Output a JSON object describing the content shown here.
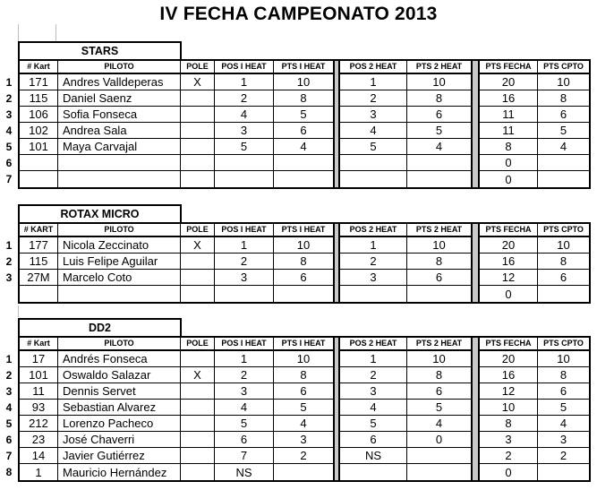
{
  "title": "IV FECHA CAMPEONATO 2013",
  "colors": {
    "background": "#ffffff",
    "border": "#000000",
    "separator_fill": "#c9c9c9",
    "gridline_stub": "#bdbdbd"
  },
  "tables": [
    {
      "name": "STARS",
      "headers": [
        "# Kart",
        "PILOTO",
        "POLE",
        "POS I HEAT",
        "PTS I HEAT",
        "POS 2 HEAT",
        "PTS 2 HEAT",
        "PTS FECHA",
        "PTS CPTO"
      ],
      "rows": [
        {
          "num": "1",
          "cells": [
            "171",
            "Andres Valldeperas",
            "X",
            "1",
            "10",
            "1",
            "10",
            "20",
            "10"
          ]
        },
        {
          "num": "2",
          "cells": [
            "115",
            "Daniel Saenz",
            "",
            "2",
            "8",
            "2",
            "8",
            "16",
            "8"
          ]
        },
        {
          "num": "3",
          "cells": [
            "106",
            "Sofia Fonseca",
            "",
            "4",
            "5",
            "3",
            "6",
            "11",
            "6"
          ]
        },
        {
          "num": "4",
          "cells": [
            "102",
            "Andrea Sala",
            "",
            "3",
            "6",
            "4",
            "5",
            "11",
            "5"
          ]
        },
        {
          "num": "5",
          "cells": [
            "101",
            "Maya Carvajal",
            "",
            "5",
            "4",
            "5",
            "4",
            "8",
            "4"
          ]
        },
        {
          "num": "6",
          "cells": [
            "",
            "",
            "",
            "",
            "",
            "",
            "",
            "0",
            ""
          ]
        },
        {
          "num": "7",
          "cells": [
            "",
            "",
            "",
            "",
            "",
            "",
            "",
            "0",
            ""
          ]
        }
      ]
    },
    {
      "name": "ROTAX MICRO",
      "headers": [
        "# KART",
        "PILOTO",
        "POLE",
        "POS I HEAT",
        "PTS I HEAT",
        "POS 2 HEAT",
        "PTS 2 HEAT",
        "PTS FECHA",
        "PTS CPTO"
      ],
      "rows": [
        {
          "num": "1",
          "cells": [
            "177",
            "Nicola Zeccinato",
            "X",
            "1",
            "10",
            "1",
            "10",
            "20",
            "10"
          ]
        },
        {
          "num": "2",
          "cells": [
            "115",
            "Luis Felipe Aguilar",
            "",
            "2",
            "8",
            "2",
            "8",
            "16",
            "8"
          ]
        },
        {
          "num": "3",
          "cells": [
            "27M",
            "Marcelo Coto",
            "",
            "3",
            "6",
            "3",
            "6",
            "12",
            "6"
          ]
        },
        {
          "num": "",
          "cells": [
            "",
            "",
            "",
            "",
            "",
            "",
            "",
            "0",
            ""
          ]
        }
      ]
    },
    {
      "name": "DD2",
      "headers": [
        "# Kart",
        "PILOTO",
        "POLE",
        "POS I HEAT",
        "PTS I HEAT",
        "POS 2 HEAT",
        "PTS 2 HEAT",
        "PTS FECHA",
        "PTS CPTO"
      ],
      "rows": [
        {
          "num": "1",
          "cells": [
            "17",
            "Andrés Fonseca",
            "",
            "1",
            "10",
            "1",
            "10",
            "20",
            "10"
          ]
        },
        {
          "num": "2",
          "cells": [
            "101",
            "Oswaldo Salazar",
            "X",
            "2",
            "8",
            "2",
            "8",
            "16",
            "8"
          ]
        },
        {
          "num": "3",
          "cells": [
            "11",
            "Dennis Servet",
            "",
            "3",
            "6",
            "3",
            "6",
            "12",
            "6"
          ]
        },
        {
          "num": "4",
          "cells": [
            "93",
            "Sebastian Alvarez",
            "",
            "4",
            "5",
            "4",
            "5",
            "10",
            "5"
          ]
        },
        {
          "num": "5",
          "cells": [
            "212",
            "Lorenzo Pacheco",
            "",
            "5",
            "4",
            "5",
            "4",
            "8",
            "4"
          ]
        },
        {
          "num": "6",
          "cells": [
            "23",
            "José Chaverri",
            "",
            "6",
            "3",
            "6",
            "0",
            "3",
            "3"
          ]
        },
        {
          "num": "7",
          "cells": [
            "14",
            "Javier Gutiérrez",
            "",
            "7",
            "2",
            "NS",
            "",
            "2",
            "2"
          ]
        },
        {
          "num": "8",
          "cells": [
            "1",
            "Mauricio Hernández",
            "",
            "NS",
            "",
            "",
            "",
            "0",
            ""
          ]
        }
      ]
    }
  ]
}
